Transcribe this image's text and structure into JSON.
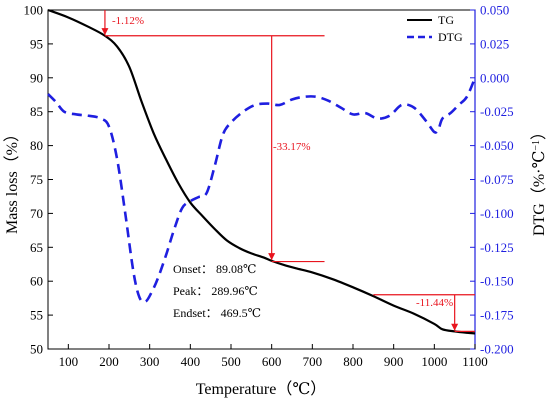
{
  "chart_data": {
    "type": "line",
    "xlabel": "Temperature（℃）",
    "ylabel_left": "Mass loss（%）",
    "ylabel_right_base": "DTG（%·℃",
    "ylabel_right_sup": "−1",
    "ylabel_right_close": "）",
    "xlim": [
      50,
      1100
    ],
    "ylim_left": [
      50,
      100
    ],
    "ylim_right": [
      -0.2,
      0.05
    ],
    "x_ticks": [
      "100",
      "200",
      "300",
      "400",
      "500",
      "600",
      "700",
      "800",
      "900",
      "1000",
      "1100"
    ],
    "y_left_ticks": [
      "50",
      "55",
      "60",
      "65",
      "70",
      "75",
      "80",
      "85",
      "90",
      "95",
      "100"
    ],
    "y_right_ticks": [
      "-0.200",
      "-0.175",
      "-0.150",
      "-0.125",
      "-0.100",
      "-0.075",
      "-0.050",
      "-0.025",
      "0.000",
      "0.025",
      "0.050"
    ],
    "legend_position": "top-right",
    "series": [
      {
        "name": "TG",
        "axis": "left",
        "style": "solid",
        "color": "#000000",
        "x": [
          50,
          100,
          150,
          190,
          220,
          250,
          280,
          310,
          340,
          370,
          400,
          430,
          460,
          490,
          520,
          550,
          580,
          600,
          630,
          660,
          700,
          750,
          800,
          850,
          900,
          950,
          1000,
          1020,
          1050,
          1080,
          1100
        ],
        "y": [
          100,
          98.9,
          97.5,
          96.2,
          94.6,
          91.6,
          86.5,
          81.8,
          78.0,
          74.5,
          71.6,
          69.6,
          67.7,
          66.0,
          64.9,
          64.1,
          63.5,
          63.0,
          62.4,
          61.9,
          61.3,
          60.3,
          59.1,
          57.8,
          56.4,
          55.2,
          53.7,
          52.9,
          52.6,
          52.4,
          52.3
        ]
      },
      {
        "name": "DTG",
        "axis": "right",
        "style": "dashed",
        "color": "#1f1fe0",
        "x": [
          50,
          70,
          90,
          120,
          150,
          180,
          200,
          220,
          240,
          260,
          275,
          290,
          305,
          320,
          340,
          360,
          380,
          400,
          420,
          440,
          460,
          480,
          500,
          530,
          560,
          590,
          620,
          650,
          680,
          710,
          740,
          770,
          800,
          830,
          860,
          890,
          920,
          950,
          980,
          1000,
          1010,
          1020,
          1040,
          1060,
          1080,
          1100
        ],
        "y": [
          -0.012,
          -0.018,
          -0.025,
          -0.027,
          -0.028,
          -0.03,
          -0.036,
          -0.06,
          -0.1,
          -0.143,
          -0.162,
          -0.165,
          -0.158,
          -0.148,
          -0.131,
          -0.112,
          -0.096,
          -0.091,
          -0.088,
          -0.085,
          -0.065,
          -0.042,
          -0.033,
          -0.025,
          -0.02,
          -0.019,
          -0.02,
          -0.016,
          -0.014,
          -0.014,
          -0.017,
          -0.022,
          -0.027,
          -0.026,
          -0.03,
          -0.028,
          -0.02,
          -0.022,
          -0.032,
          -0.04,
          -0.038,
          -0.03,
          -0.026,
          -0.02,
          -0.014,
          0.0
        ]
      }
    ],
    "annotations": {
      "step1_label": "-1.12%",
      "step2_label": "-33.17%",
      "step3_label": "-11.44%",
      "onset": "Onset： 89.08℃",
      "peak": "Peak： 289.96℃",
      "endset": "Endset： 469.5℃"
    }
  }
}
